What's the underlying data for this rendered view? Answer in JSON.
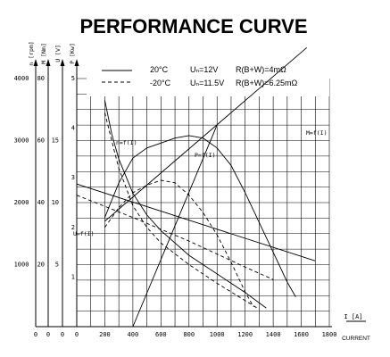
{
  "chart_data": {
    "type": "line",
    "title": "PERFORMANCE CURVE",
    "xlabel": "I [A]",
    "xlabel_extra": "CURRENT",
    "x_ticks": [
      0,
      200,
      400,
      600,
      800,
      1000,
      1200,
      1400,
      1600,
      1800
    ],
    "xlim": [
      0,
      1800
    ],
    "grid": true,
    "axes": [
      {
        "label": "n [rpm]",
        "range": [
          0,
          4000
        ],
        "ticks": [
          1000,
          2000,
          3000,
          4000
        ]
      },
      {
        "label": "M [Nm]",
        "range": [
          0,
          80
        ],
        "ticks": [
          20,
          40,
          60,
          80
        ]
      },
      {
        "label": "U [V]",
        "range": [
          0,
          20
        ],
        "ticks": [
          5,
          10,
          15
        ]
      },
      {
        "label": "P [Kw]",
        "range": [
          0,
          5
        ],
        "ticks": [
          1,
          2,
          3,
          4,
          5
        ]
      }
    ],
    "legend": {
      "solid": {
        "temp": "20°C",
        "voltage": "Uₙ=12V",
        "resistance": "R(B+W)=4mΩ"
      },
      "dashed": {
        "temp": "-20°C",
        "voltage": "Uₙ=11.5V",
        "resistance": "R(B+W)=6.25mΩ"
      }
    },
    "curve_labels": {
      "speed": "n=f(I)",
      "power": "P=f(I)",
      "voltage": "U=f(I)",
      "torque": "M=f(I)"
    },
    "series": [
      {
        "key": "speed",
        "style": "solid",
        "axis": 0,
        "points": [
          [
            200,
            3650
          ],
          [
            250,
            3100
          ],
          [
            300,
            2700
          ],
          [
            400,
            2150
          ],
          [
            500,
            1800
          ],
          [
            600,
            1550
          ],
          [
            800,
            1150
          ],
          [
            1000,
            850
          ],
          [
            1200,
            550
          ],
          [
            1350,
            300
          ]
        ]
      },
      {
        "key": "speed",
        "style": "dashed",
        "axis": 0,
        "points": [
          [
            200,
            3450
          ],
          [
            260,
            2900
          ],
          [
            300,
            2550
          ],
          [
            400,
            1950
          ],
          [
            500,
            1600
          ],
          [
            600,
            1350
          ],
          [
            800,
            1000
          ],
          [
            1000,
            700
          ],
          [
            1200,
            420
          ],
          [
            1300,
            280
          ]
        ]
      },
      {
        "key": "power",
        "style": "solid",
        "axis": 3,
        "points": [
          [
            200,
            2.2
          ],
          [
            300,
            2.9
          ],
          [
            400,
            3.4
          ],
          [
            500,
            3.6
          ],
          [
            600,
            3.7
          ],
          [
            700,
            3.8
          ],
          [
            800,
            3.85
          ],
          [
            900,
            3.8
          ],
          [
            1000,
            3.6
          ],
          [
            1100,
            3.25
          ],
          [
            1200,
            2.7
          ],
          [
            1300,
            2.1
          ],
          [
            1400,
            1.5
          ],
          [
            1500,
            0.9
          ],
          [
            1560,
            0.6
          ]
        ]
      },
      {
        "key": "power",
        "style": "dashed",
        "axis": 3,
        "points": [
          [
            200,
            2.0
          ],
          [
            300,
            2.4
          ],
          [
            400,
            2.7
          ],
          [
            500,
            2.85
          ],
          [
            600,
            2.95
          ],
          [
            700,
            2.9
          ],
          [
            800,
            2.65
          ],
          [
            900,
            2.3
          ],
          [
            1000,
            1.85
          ],
          [
            1100,
            1.3
          ],
          [
            1200,
            0.7
          ],
          [
            1260,
            0.4
          ]
        ]
      },
      {
        "key": "voltage",
        "style": "solid",
        "axis": 2,
        "points": [
          [
            0,
            11.5
          ],
          [
            1700,
            5.3
          ]
        ]
      },
      {
        "key": "voltage",
        "style": "dashed",
        "axis": 2,
        "points": [
          [
            0,
            10.6
          ],
          [
            400,
            8.8
          ],
          [
            800,
            6.9
          ],
          [
            1200,
            4.8
          ],
          [
            1400,
            3.8
          ]
        ]
      },
      {
        "key": "torque",
        "style": "solid",
        "axis": 1,
        "points": [
          [
            200,
            34
          ],
          [
            1640,
            90
          ]
        ]
      },
      {
        "key": "torque",
        "style": "solid",
        "axis": 1,
        "points": [
          [
            400,
            0
          ],
          [
            1000,
            65
          ]
        ]
      }
    ]
  }
}
